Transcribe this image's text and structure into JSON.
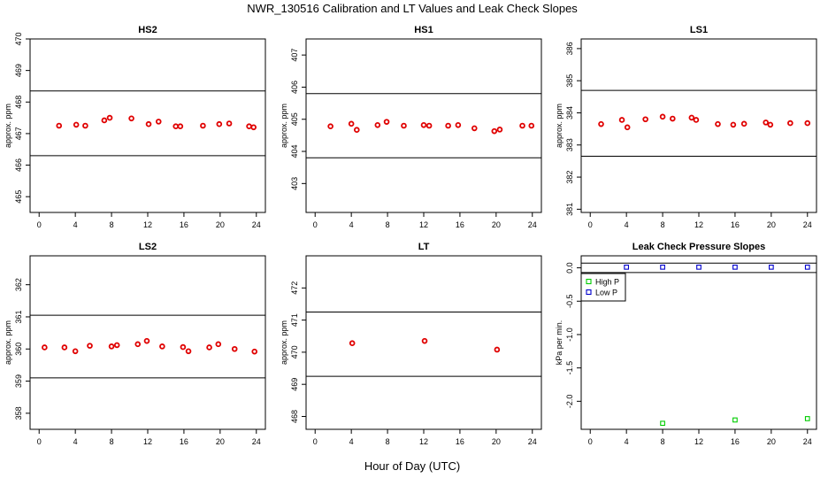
{
  "figure": {
    "title": "NWR_130516  Calibration and LT Values and Leak Check Slopes",
    "xlabel": "Hour of Day (UTC)"
  },
  "chart_data": [
    {
      "type": "scatter",
      "title": "HS2",
      "xlabel": "Hour of Day (UTC)",
      "ylabel": "approx. ppm",
      "xlim": [
        -1,
        25
      ],
      "ylim": [
        464.5,
        470
      ],
      "xticks": [
        "0",
        "4",
        "8",
        "12",
        "16",
        "20",
        "24"
      ],
      "yticks": [
        "465",
        "466",
        "467",
        "468",
        "469",
        "470"
      ],
      "hlines": [
        468.35,
        466.3
      ],
      "marker_color": "#e00000",
      "series": [
        {
          "x": [
            2.2,
            4.1,
            5.1,
            7.2,
            7.8,
            10.2,
            12.1,
            13.2,
            15.1,
            15.6,
            18.1,
            19.9,
            21.0,
            23.2,
            23.7
          ],
          "y": [
            467.25,
            467.28,
            467.25,
            467.42,
            467.5,
            467.48,
            467.3,
            467.38,
            467.23,
            467.23,
            467.25,
            467.3,
            467.32,
            467.23,
            467.2
          ]
        }
      ]
    },
    {
      "type": "scatter",
      "title": "HS1",
      "xlabel": "Hour of Day (UTC)",
      "ylabel": "approx. ppm",
      "xlim": [
        -1,
        25
      ],
      "ylim": [
        402.1,
        407.5
      ],
      "xticks": [
        "0",
        "4",
        "8",
        "12",
        "16",
        "20",
        "24"
      ],
      "yticks": [
        "403",
        "404",
        "405",
        "406",
        "407"
      ],
      "hlines": [
        405.8,
        403.8
      ],
      "marker_color": "#e00000",
      "series": [
        {
          "x": [
            1.7,
            4.0,
            4.6,
            6.9,
            7.9,
            9.8,
            12.0,
            12.6,
            14.7,
            15.8,
            17.6,
            19.8,
            20.4,
            22.9,
            23.9
          ],
          "y": [
            404.78,
            404.86,
            404.67,
            404.82,
            404.92,
            404.8,
            404.82,
            404.8,
            404.8,
            404.82,
            404.72,
            404.63,
            404.68,
            404.8,
            404.8
          ]
        }
      ]
    },
    {
      "type": "scatter",
      "title": "LS1",
      "xlabel": "Hour of Day (UTC)",
      "ylabel": "approx. ppm",
      "xlim": [
        -1,
        25
      ],
      "ylim": [
        380.9,
        386.3
      ],
      "xticks": [
        "0",
        "4",
        "8",
        "12",
        "16",
        "20",
        "24"
      ],
      "yticks": [
        "381",
        "382",
        "383",
        "384",
        "385",
        "386"
      ],
      "hlines": [
        384.7,
        382.65
      ],
      "marker_color": "#e00000",
      "series": [
        {
          "x": [
            1.2,
            3.5,
            4.1,
            6.1,
            8.0,
            9.1,
            11.2,
            11.7,
            14.1,
            15.8,
            17.0,
            19.4,
            19.9,
            22.1,
            24.0
          ],
          "y": [
            383.65,
            383.78,
            383.55,
            383.8,
            383.88,
            383.82,
            383.85,
            383.78,
            383.65,
            383.63,
            383.66,
            383.7,
            383.63,
            383.68,
            383.68
          ]
        }
      ]
    },
    {
      "type": "scatter",
      "title": "LS2",
      "xlabel": "Hour of Day (UTC)",
      "ylabel": "approx. ppm",
      "xlim": [
        -1,
        25
      ],
      "ylim": [
        357.5,
        362.9
      ],
      "xticks": [
        "0",
        "4",
        "8",
        "12",
        "16",
        "20",
        "24"
      ],
      "yticks": [
        "358",
        "359",
        "360",
        "361",
        "362"
      ],
      "hlines": [
        361.05,
        359.1
      ],
      "marker_color": "#e00000",
      "series": [
        {
          "x": [
            0.6,
            2.8,
            4.0,
            5.6,
            8.0,
            8.6,
            10.9,
            11.9,
            13.6,
            15.9,
            16.5,
            18.8,
            19.8,
            21.6,
            23.8
          ],
          "y": [
            360.05,
            360.05,
            359.93,
            360.1,
            360.08,
            360.12,
            360.15,
            360.25,
            360.08,
            360.06,
            359.93,
            360.05,
            360.15,
            360.0,
            359.92
          ]
        }
      ]
    },
    {
      "type": "scatter",
      "title": "LT",
      "xlabel": "Hour of Day (UTC)",
      "ylabel": "approx. ppm",
      "xlim": [
        -1,
        25
      ],
      "ylim": [
        467.6,
        473.0
      ],
      "xticks": [
        "0",
        "4",
        "8",
        "12",
        "16",
        "20",
        "24"
      ],
      "yticks": [
        "468",
        "469",
        "470",
        "471",
        "472"
      ],
      "hlines": [
        471.25,
        469.25
      ],
      "marker_color": "#e00000",
      "series": [
        {
          "x": [
            4.1,
            12.1,
            20.1
          ],
          "y": [
            470.28,
            470.35,
            470.08
          ]
        }
      ]
    },
    {
      "type": "scatter",
      "title": "Leak Check Pressure Slopes",
      "xlabel": "Hour of Day (UTC)",
      "ylabel": "kPa per min.",
      "xlim": [
        -1,
        25
      ],
      "ylim": [
        -2.42,
        0.18
      ],
      "xticks": [
        "0",
        "4",
        "8",
        "12",
        "16",
        "20",
        "24"
      ],
      "yticks": [
        "-2.0",
        "-1.5",
        "-1.0",
        "-0.5",
        "0.0"
      ],
      "hlines": [
        0.07,
        -0.07
      ],
      "legend": "top-left",
      "series": [
        {
          "name": "High P",
          "color": "#00cc00",
          "x": [
            8.0,
            16.0,
            24.0
          ],
          "y": [
            -2.33,
            -2.28,
            -2.26
          ]
        },
        {
          "name": "Low P",
          "color": "#0000cc",
          "x": [
            4.0,
            8.0,
            12.0,
            16.0,
            20.0,
            24.0
          ],
          "y": [
            0.01,
            0.01,
            0.01,
            0.01,
            0.01,
            0.01
          ]
        }
      ]
    }
  ]
}
